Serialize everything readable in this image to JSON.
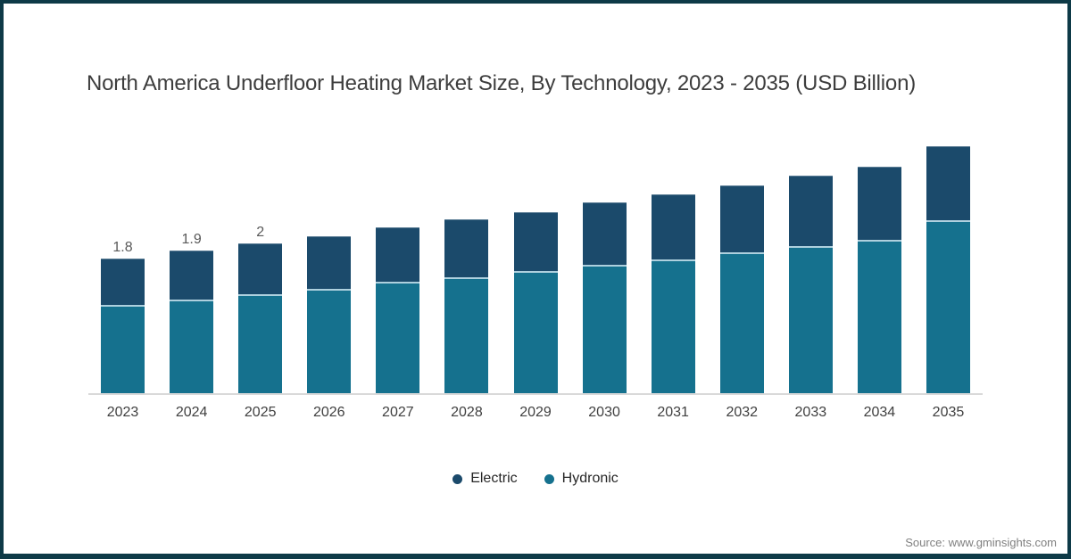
{
  "page": {
    "background": "#ffffff",
    "frame_border_color": "#0e3a47"
  },
  "header": {
    "title": "North America Underfloor Heating Market Size, By Technology, 2023 - 2035 (USD Billion)"
  },
  "footer": {
    "source": "Source: www.gminsights.com"
  },
  "legend": {
    "items": [
      {
        "label": "Electric",
        "color": "#1b4a6b"
      },
      {
        "label": "Hydronic",
        "color": "#15718e"
      }
    ]
  },
  "colors": {
    "electric": "#1b4a6b",
    "hydronic": "#15718e",
    "segment_separator": "#aed0de",
    "axis_line": "#d9d9d9",
    "title_text": "#3d3d3d",
    "bar_label_text": "#595959",
    "x_label_text": "#404040",
    "source_text": "#808080"
  },
  "chart_data": {
    "type": "bar",
    "stacked": true,
    "title": "North America Underfloor Heating Market Size, By Technology, 2023 - 2035 (USD Billion)",
    "unit": "USD Billion",
    "categories": [
      "2023",
      "2024",
      "2025",
      "2026",
      "2027",
      "2028",
      "2029",
      "2030",
      "2031",
      "2032",
      "2033",
      "2034",
      "2035"
    ],
    "series": [
      {
        "name": "Hydronic",
        "color": "#15718e",
        "values": [
          1.18,
          1.25,
          1.32,
          1.39,
          1.49,
          1.55,
          1.63,
          1.72,
          1.78,
          1.88,
          1.97,
          2.05,
          2.31
        ]
      },
      {
        "name": "Electric",
        "color": "#1b4a6b",
        "values": [
          0.62,
          0.65,
          0.68,
          0.71,
          0.72,
          0.77,
          0.79,
          0.83,
          0.87,
          0.89,
          0.93,
          0.98,
          0.99
        ]
      }
    ],
    "totals": [
      1.8,
      1.9,
      2.0,
      2.1,
      2.21,
      2.32,
      2.42,
      2.55,
      2.65,
      2.77,
      2.9,
      3.03,
      3.3
    ],
    "bar_labels": [
      "1.8",
      "1.9",
      "2",
      "",
      "",
      "",
      "",
      "",
      "",
      "",
      "",
      "",
      ""
    ],
    "xlabel": "",
    "ylabel": "",
    "ylim": [
      0,
      3.5
    ],
    "grid": false,
    "y_axis_visible": false,
    "legend_position": "bottom"
  }
}
